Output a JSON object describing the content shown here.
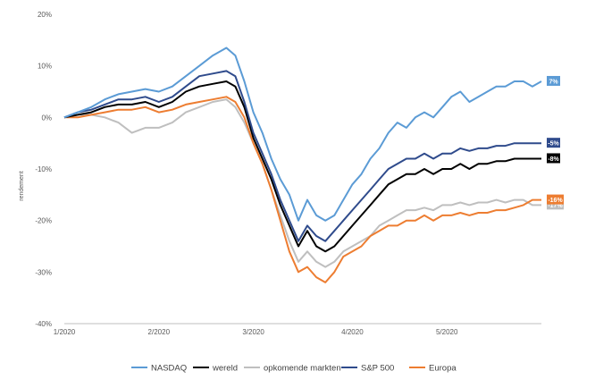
{
  "chart_data": {
    "type": "line",
    "ylabel": "rendement",
    "y_ticks": [
      "-40%",
      "-30%",
      "-20%",
      "-10%",
      "0%",
      "10%",
      "20%"
    ],
    "y_tick_values": [
      -40,
      -30,
      -20,
      -10,
      0,
      10,
      20
    ],
    "ylim": [
      -40,
      20
    ],
    "x_ticks": [
      "1/2020",
      "2/2020",
      "3/2020",
      "4/2020",
      "5/2020"
    ],
    "x_tick_positions": [
      0,
      21,
      42,
      64,
      85
    ],
    "xlim": [
      0,
      106
    ],
    "grid": false,
    "legend_position": "bottom",
    "series": [
      {
        "name": "NASDAQ",
        "color": "#5B9BD5",
        "end_label": "7%",
        "points": [
          [
            0,
            0
          ],
          [
            3,
            1
          ],
          [
            6,
            2
          ],
          [
            9,
            3.5
          ],
          [
            12,
            4.5
          ],
          [
            15,
            5
          ],
          [
            18,
            5.5
          ],
          [
            21,
            5
          ],
          [
            24,
            6
          ],
          [
            27,
            8
          ],
          [
            30,
            10
          ],
          [
            33,
            12
          ],
          [
            36,
            13.5
          ],
          [
            38,
            12
          ],
          [
            40,
            7
          ],
          [
            42,
            1
          ],
          [
            44,
            -3
          ],
          [
            46,
            -8
          ],
          [
            48,
            -12
          ],
          [
            50,
            -15
          ],
          [
            52,
            -20
          ],
          [
            54,
            -16
          ],
          [
            56,
            -19
          ],
          [
            58,
            -20
          ],
          [
            60,
            -19
          ],
          [
            62,
            -16
          ],
          [
            64,
            -13
          ],
          [
            66,
            -11
          ],
          [
            68,
            -8
          ],
          [
            70,
            -6
          ],
          [
            72,
            -3
          ],
          [
            74,
            -1
          ],
          [
            76,
            -2
          ],
          [
            78,
            0
          ],
          [
            80,
            1
          ],
          [
            82,
            0
          ],
          [
            84,
            2
          ],
          [
            86,
            4
          ],
          [
            88,
            5
          ],
          [
            90,
            3
          ],
          [
            92,
            4
          ],
          [
            94,
            5
          ],
          [
            96,
            6
          ],
          [
            98,
            6
          ],
          [
            100,
            7
          ],
          [
            102,
            7
          ],
          [
            104,
            6
          ],
          [
            106,
            7
          ]
        ]
      },
      {
        "name": "wereld",
        "color": "#000000",
        "end_label": "-8%",
        "points": [
          [
            0,
            0
          ],
          [
            3,
            0.5
          ],
          [
            6,
            1
          ],
          [
            9,
            2
          ],
          [
            12,
            2.5
          ],
          [
            15,
            2.5
          ],
          [
            18,
            3
          ],
          [
            21,
            2
          ],
          [
            24,
            3
          ],
          [
            27,
            5
          ],
          [
            30,
            6
          ],
          [
            33,
            6.5
          ],
          [
            36,
            7
          ],
          [
            38,
            6
          ],
          [
            40,
            2
          ],
          [
            42,
            -4
          ],
          [
            44,
            -8
          ],
          [
            46,
            -12
          ],
          [
            48,
            -17
          ],
          [
            50,
            -21
          ],
          [
            52,
            -25
          ],
          [
            54,
            -22
          ],
          [
            56,
            -25
          ],
          [
            58,
            -26
          ],
          [
            60,
            -25
          ],
          [
            62,
            -23
          ],
          [
            64,
            -21
          ],
          [
            66,
            -19
          ],
          [
            68,
            -17
          ],
          [
            70,
            -15
          ],
          [
            72,
            -13
          ],
          [
            74,
            -12
          ],
          [
            76,
            -11
          ],
          [
            78,
            -11
          ],
          [
            80,
            -10
          ],
          [
            82,
            -11
          ],
          [
            84,
            -10
          ],
          [
            86,
            -10
          ],
          [
            88,
            -9
          ],
          [
            90,
            -10
          ],
          [
            92,
            -9
          ],
          [
            94,
            -9
          ],
          [
            96,
            -8.5
          ],
          [
            98,
            -8.5
          ],
          [
            100,
            -8
          ],
          [
            102,
            -8
          ],
          [
            104,
            -8
          ],
          [
            106,
            -8
          ]
        ]
      },
      {
        "name": "opkomende markten",
        "color": "#BFBFBF",
        "end_label": "-17%",
        "points": [
          [
            0,
            0
          ],
          [
            3,
            0.5
          ],
          [
            6,
            0.5
          ],
          [
            9,
            0
          ],
          [
            12,
            -1
          ],
          [
            15,
            -3
          ],
          [
            18,
            -2
          ],
          [
            21,
            -2
          ],
          [
            24,
            -1
          ],
          [
            27,
            1
          ],
          [
            30,
            2
          ],
          [
            33,
            3
          ],
          [
            36,
            3.5
          ],
          [
            38,
            2
          ],
          [
            40,
            -1
          ],
          [
            42,
            -5
          ],
          [
            44,
            -9
          ],
          [
            46,
            -14
          ],
          [
            48,
            -19
          ],
          [
            50,
            -24
          ],
          [
            52,
            -28
          ],
          [
            54,
            -26
          ],
          [
            56,
            -28
          ],
          [
            58,
            -29
          ],
          [
            60,
            -28
          ],
          [
            62,
            -26
          ],
          [
            64,
            -25
          ],
          [
            66,
            -24
          ],
          [
            68,
            -23
          ],
          [
            70,
            -21
          ],
          [
            72,
            -20
          ],
          [
            74,
            -19
          ],
          [
            76,
            -18
          ],
          [
            78,
            -18
          ],
          [
            80,
            -17.5
          ],
          [
            82,
            -18
          ],
          [
            84,
            -17
          ],
          [
            86,
            -17
          ],
          [
            88,
            -16.5
          ],
          [
            90,
            -17
          ],
          [
            92,
            -16.5
          ],
          [
            94,
            -16.5
          ],
          [
            96,
            -16
          ],
          [
            98,
            -16.5
          ],
          [
            100,
            -16
          ],
          [
            102,
            -16
          ],
          [
            104,
            -17
          ],
          [
            106,
            -17
          ]
        ]
      },
      {
        "name": "S&P 500",
        "color": "#2F4B8C",
        "end_label": "-5%",
        "points": [
          [
            0,
            0
          ],
          [
            3,
            1
          ],
          [
            6,
            1.5
          ],
          [
            9,
            2.5
          ],
          [
            12,
            3.5
          ],
          [
            15,
            3.5
          ],
          [
            18,
            4
          ],
          [
            21,
            3
          ],
          [
            24,
            4
          ],
          [
            27,
            6
          ],
          [
            30,
            8
          ],
          [
            33,
            8.5
          ],
          [
            36,
            9
          ],
          [
            38,
            8
          ],
          [
            40,
            3
          ],
          [
            42,
            -3
          ],
          [
            44,
            -7
          ],
          [
            46,
            -11
          ],
          [
            48,
            -16
          ],
          [
            50,
            -20
          ],
          [
            52,
            -24
          ],
          [
            54,
            -21
          ],
          [
            56,
            -23
          ],
          [
            58,
            -24
          ],
          [
            60,
            -22
          ],
          [
            62,
            -20
          ],
          [
            64,
            -18
          ],
          [
            66,
            -16
          ],
          [
            68,
            -14
          ],
          [
            70,
            -12
          ],
          [
            72,
            -10
          ],
          [
            74,
            -9
          ],
          [
            76,
            -8
          ],
          [
            78,
            -8
          ],
          [
            80,
            -7
          ],
          [
            82,
            -8
          ],
          [
            84,
            -7
          ],
          [
            86,
            -7
          ],
          [
            88,
            -6
          ],
          [
            90,
            -6.5
          ],
          [
            92,
            -6
          ],
          [
            94,
            -6
          ],
          [
            96,
            -5.5
          ],
          [
            98,
            -5.5
          ],
          [
            100,
            -5
          ],
          [
            102,
            -5
          ],
          [
            104,
            -5
          ],
          [
            106,
            -5
          ]
        ]
      },
      {
        "name": "Europa",
        "color": "#ED7D31",
        "end_label": "-16%",
        "points": [
          [
            0,
            0
          ],
          [
            3,
            0
          ],
          [
            6,
            0.5
          ],
          [
            9,
            1
          ],
          [
            12,
            1.5
          ],
          [
            15,
            1.5
          ],
          [
            18,
            2
          ],
          [
            21,
            1
          ],
          [
            24,
            1.5
          ],
          [
            27,
            2.5
          ],
          [
            30,
            3
          ],
          [
            33,
            3.5
          ],
          [
            36,
            4
          ],
          [
            38,
            3
          ],
          [
            40,
            0
          ],
          [
            42,
            -5
          ],
          [
            44,
            -9
          ],
          [
            46,
            -14
          ],
          [
            48,
            -20
          ],
          [
            50,
            -26
          ],
          [
            52,
            -30
          ],
          [
            54,
            -29
          ],
          [
            56,
            -31
          ],
          [
            58,
            -32
          ],
          [
            60,
            -30
          ],
          [
            62,
            -27
          ],
          [
            64,
            -26
          ],
          [
            66,
            -25
          ],
          [
            68,
            -23
          ],
          [
            70,
            -22
          ],
          [
            72,
            -21
          ],
          [
            74,
            -21
          ],
          [
            76,
            -20
          ],
          [
            78,
            -20
          ],
          [
            80,
            -19
          ],
          [
            82,
            -20
          ],
          [
            84,
            -19
          ],
          [
            86,
            -19
          ],
          [
            88,
            -18.5
          ],
          [
            90,
            -19
          ],
          [
            92,
            -18.5
          ],
          [
            94,
            -18.5
          ],
          [
            96,
            -18
          ],
          [
            98,
            -18
          ],
          [
            100,
            -17.5
          ],
          [
            102,
            -17
          ],
          [
            104,
            -16
          ],
          [
            106,
            -16
          ]
        ]
      }
    ]
  }
}
